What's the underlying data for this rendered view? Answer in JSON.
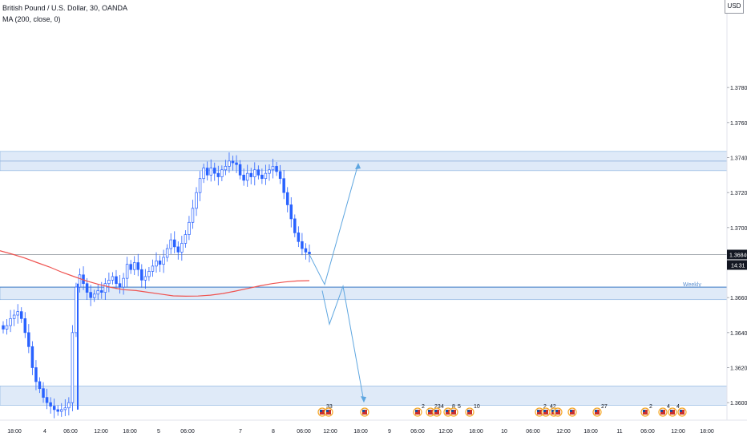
{
  "header": {
    "symbol_line": "British Pound / U.S. Dollar, 30, OANDA",
    "indicator_line": "MA (200, close, 0)",
    "currency": "USD"
  },
  "chart_data": {
    "type": "candlestick",
    "title": "British Pound / U.S. Dollar, 30, OANDA",
    "ylim": [
      1.359,
      1.383
    ],
    "y_ticks": [
      "1.37800",
      "1.37600",
      "1.37400",
      "1.37200",
      "1.37000",
      "1.36800",
      "1.36600",
      "1.36400",
      "1.36200",
      "1.36000"
    ],
    "x_ticks": [
      "18:00",
      "4",
      "06:00",
      "12:00",
      "18:00",
      "5",
      "06:00",
      "7",
      "8",
      "06:00",
      "12:00",
      "18:00",
      "9",
      "06:00",
      "12:00",
      "18:00",
      "10",
      "06:00",
      "12:00",
      "18:00",
      "11",
      "06:00",
      "12:00",
      "18:00"
    ],
    "last_price": "1.36846",
    "countdown": "14:31",
    "zone_label": "Weekly",
    "ma_label": "MA (200, close, 0)",
    "price_path": [
      1.3642,
      1.3644,
      1.3648,
      1.365,
      1.3652,
      1.3648,
      1.364,
      1.3632,
      1.362,
      1.3612,
      1.3608,
      1.3603,
      1.36,
      1.3598,
      1.3596,
      1.3595,
      1.3596,
      1.3597,
      1.36,
      1.364,
      1.3666,
      1.3673,
      1.3668,
      1.3663,
      1.366,
      1.3662,
      1.3664,
      1.3663,
      1.3668,
      1.367,
      1.3672,
      1.3668,
      1.3666,
      1.3671,
      1.3679,
      1.3676,
      1.368,
      1.3676,
      1.367,
      1.3672,
      1.3675,
      1.3678,
      1.3681,
      1.3679,
      1.3683,
      1.3688,
      1.3693,
      1.3689,
      1.3686,
      1.3691,
      1.3696,
      1.3703,
      1.3711,
      1.372,
      1.3728,
      1.3734,
      1.373,
      1.3734,
      1.3731,
      1.3729,
      1.3733,
      1.3735,
      1.3738,
      1.3737,
      1.3736,
      1.373,
      1.3727,
      1.3731,
      1.3729,
      1.3733,
      1.373,
      1.3728,
      1.3731,
      1.3733,
      1.3735,
      1.3732,
      1.3728,
      1.372,
      1.3713,
      1.3705,
      1.3697,
      1.3692,
      1.3688,
      1.3686,
      1.3685
    ],
    "ma_path": [
      1.36868,
      1.36848,
      1.36826,
      1.368,
      1.36775,
      1.36745,
      1.3672,
      1.36695,
      1.36675,
      1.36658,
      1.36645,
      1.3664,
      1.3663,
      1.3662,
      1.3661,
      1.36608,
      1.36609,
      1.36614,
      1.36623,
      1.36637,
      1.36652,
      1.36667,
      1.3668,
      1.36689,
      1.36695,
      1.36697
    ],
    "zones": [
      {
        "label": "",
        "top": 1.37435,
        "bottom": 1.37325
      },
      {
        "label": "Weekly",
        "top": 1.3666,
        "bottom": 1.36588
      },
      {
        "label": "",
        "top": 1.36095,
        "bottom": 1.35985
      }
    ],
    "horizontal_lines": [
      {
        "value": 1.3738
      },
      {
        "value": 1.3666
      },
      {
        "value": 1.36846
      }
    ],
    "projection_path": [
      {
        "x_label": "06:00 (8)",
        "y": 1.36846
      },
      {
        "x_label": "~09:00 (8)",
        "y": 1.3666
      },
      {
        "x_label": "~12:00 (8)",
        "y": 1.3736
      }
    ],
    "projection_path_2": [
      {
        "y": 1.3664
      },
      {
        "y": 1.3645
      },
      {
        "y": 1.3666
      },
      {
        "y": 1.36
      }
    ],
    "event_markers": [
      {
        "group": "33"
      },
      {
        "group": ""
      },
      {
        "group": ""
      },
      {
        "group": "2"
      },
      {
        "group": "23"
      },
      {
        "group": "4"
      },
      {
        "group": "8"
      },
      {
        "group": "5"
      },
      {
        "group": "10"
      },
      {
        "group": "2"
      },
      {
        "group": "42"
      },
      {
        "group": ""
      },
      {
        "group": ""
      },
      {
        "group": ""
      },
      {
        "group": "27"
      },
      {
        "group": "2"
      },
      {
        "group": "4"
      },
      {
        "group": "4"
      }
    ],
    "grid": false,
    "colors": {
      "up": "#2962ff",
      "down": "#2962ff",
      "ma": "#ef5350",
      "zone_fill": "#dfeaf8",
      "zone_border": "#6fa1d8",
      "projection": "#5ea6e0",
      "price_label_bg": "#131722",
      "price_label_text": "#ffffff"
    }
  }
}
